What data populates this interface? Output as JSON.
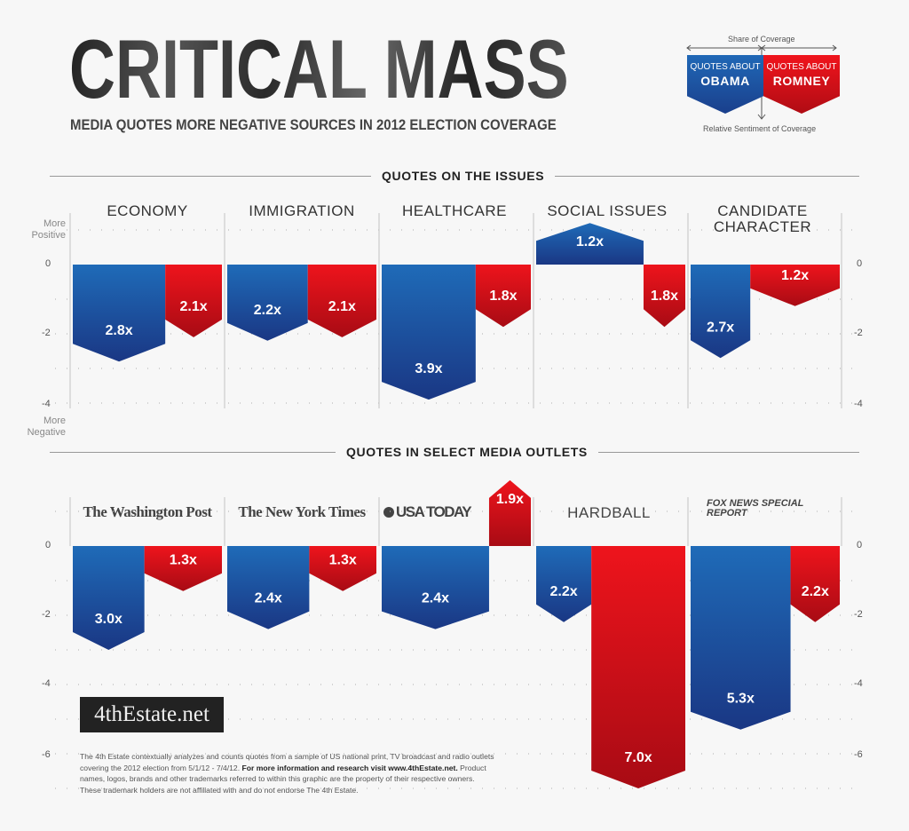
{
  "header": {
    "title": "CRITICAL MASS",
    "subtitle": "MEDIA QUOTES MORE NEGATIVE SOURCES IN 2012 ELECTION COVERAGE"
  },
  "legend": {
    "share_label": "Share of Coverage",
    "sentiment_label": "Relative Sentiment of Coverage",
    "obama_small": "QUOTES ABOUT",
    "obama_big": "OBAMA",
    "romney_small": "QUOTES ABOUT",
    "romney_big": "ROMNEY"
  },
  "colors": {
    "obama": "#1d5fae",
    "obama_dark": "#1a3a80",
    "romney": "#e8141c",
    "romney_dark": "#a80c14",
    "background": "#f7f7f7"
  },
  "axis": {
    "more_positive": "More Positive",
    "more_negative": "More Negative",
    "top_ticks": [
      "0",
      "-2",
      "-4"
    ],
    "bottom_ticks": [
      "0",
      "-2",
      "-4",
      "-6"
    ]
  },
  "chart_data": [
    {
      "type": "bar",
      "title": "QUOTES ON THE ISSUES",
      "ylabel": "Relative Sentiment of Coverage",
      "xlabel": "Share of Coverage",
      "ylim": [
        -4,
        1
      ],
      "grid": true,
      "categories": [
        "ECONOMY",
        "IMMIGRATION",
        "HEALTHCARE",
        "SOCIAL ISSUES",
        "CANDIDATE CHARACTER"
      ],
      "series": [
        {
          "name": "Quotes about Obama",
          "share_percent": [
            62,
            54,
            63,
            72,
            40
          ],
          "sentiment": [
            -2.8,
            -2.2,
            -3.9,
            1.2,
            -2.7
          ],
          "labels": [
            "2.8x",
            "2.2x",
            "3.9x",
            "1.2x",
            "2.7x"
          ]
        },
        {
          "name": "Quotes about Romney",
          "share_percent": [
            38,
            46,
            37,
            28,
            60
          ],
          "sentiment": [
            -2.1,
            -2.1,
            -1.8,
            -1.8,
            -1.2
          ],
          "labels": [
            "2.1x",
            "2.1x",
            "1.8x",
            "1.8x",
            "1.2x"
          ]
        }
      ]
    },
    {
      "type": "bar",
      "title": "QUOTES IN SELECT MEDIA OUTLETS",
      "ylabel": "Relative Sentiment of Coverage",
      "xlabel": "Share of Coverage",
      "ylim": [
        -7,
        1
      ],
      "grid": true,
      "categories": [
        "The Washington Post",
        "The New York Times",
        "USA TODAY",
        "HARDBALL",
        "FOX NEWS SPECIAL REPORT"
      ],
      "series": [
        {
          "name": "Quotes about Obama",
          "share_percent": [
            48,
            55,
            72,
            37,
            67
          ],
          "sentiment": [
            -3.0,
            -2.4,
            -2.4,
            -2.2,
            -5.3
          ],
          "labels": [
            "3.0x",
            "2.4x",
            "2.4x",
            "2.2x",
            "5.3x"
          ]
        },
        {
          "name": "Quotes about Romney",
          "share_percent": [
            52,
            45,
            28,
            63,
            33
          ],
          "sentiment": [
            -1.3,
            -1.3,
            1.9,
            -7.0,
            -2.2
          ],
          "labels": [
            "1.3x",
            "1.3x",
            "1.9x",
            "7.0x",
            "2.2x"
          ]
        }
      ]
    }
  ],
  "footer": {
    "brand": "4thEstate.net",
    "note": "The 4th Estate contextually analyzes and counts quotes from a sample of US national print, TV broadcast and radio outlets covering the 2012 election from 5/1/12 - 7/4/12.",
    "note_bold": "For more information and research visit www.4thEstate.net.",
    "disclaimer": "Product names, logos, brands and other trademarks referred to within this graphic are the property of their respective owners. These trademark holders are not affiliated with and do not endorse The 4th Estate."
  }
}
